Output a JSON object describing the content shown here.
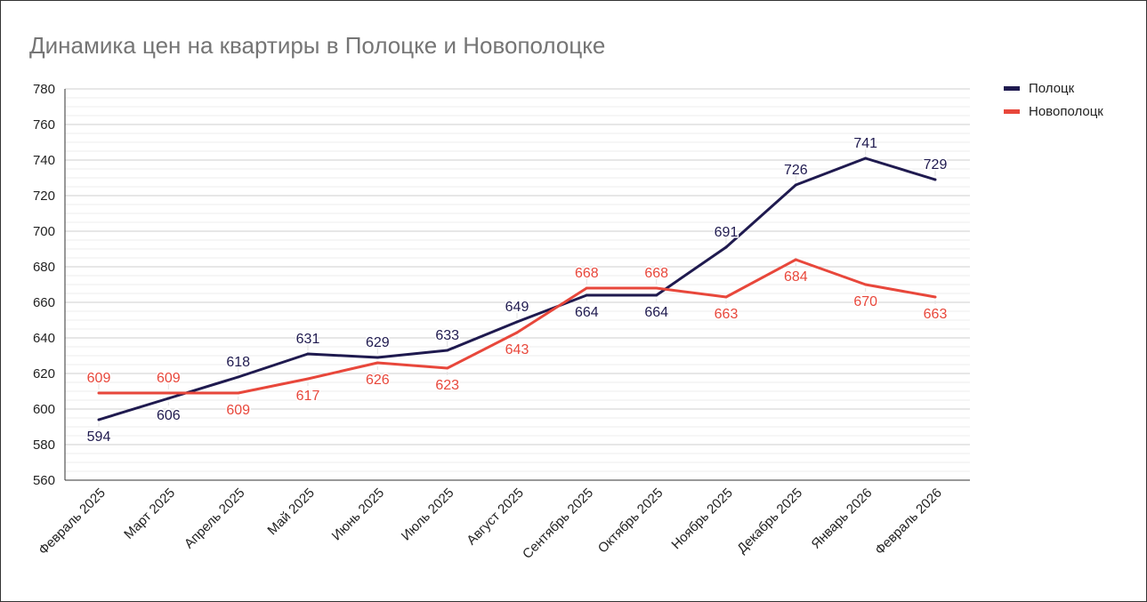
{
  "chart_data": {
    "type": "line",
    "title": "Динамика цен на квартиры в Полоцке и Новополоцке",
    "categories": [
      "Февраль 2025",
      "Март 2025",
      "Апрель 2025",
      "Май 2025",
      "Июнь 2025",
      "Июль 2025",
      "Август 2025",
      "Сентябрь 2025",
      "Октябрь 2025",
      "Ноябрь 2025",
      "Декабрь 2025",
      "Январь 2026",
      "Февраль 2026"
    ],
    "series": [
      {
        "name": "Полоцк",
        "color": "#1f1a4f",
        "values": [
          594,
          606,
          618,
          631,
          629,
          633,
          649,
          664,
          664,
          691,
          726,
          741,
          729
        ]
      },
      {
        "name": "Новополоцк",
        "color": "#e8473b",
        "values": [
          609,
          609,
          609,
          617,
          626,
          623,
          643,
          668,
          668,
          663,
          684,
          670,
          663
        ]
      }
    ],
    "ylim": [
      560,
      780
    ],
    "yticks": [
      "560",
      "580",
      "600",
      "620",
      "640",
      "660",
      "680",
      "700",
      "720",
      "740",
      "760",
      "780"
    ],
    "grid": true,
    "legend": "right",
    "data_labels": true
  }
}
